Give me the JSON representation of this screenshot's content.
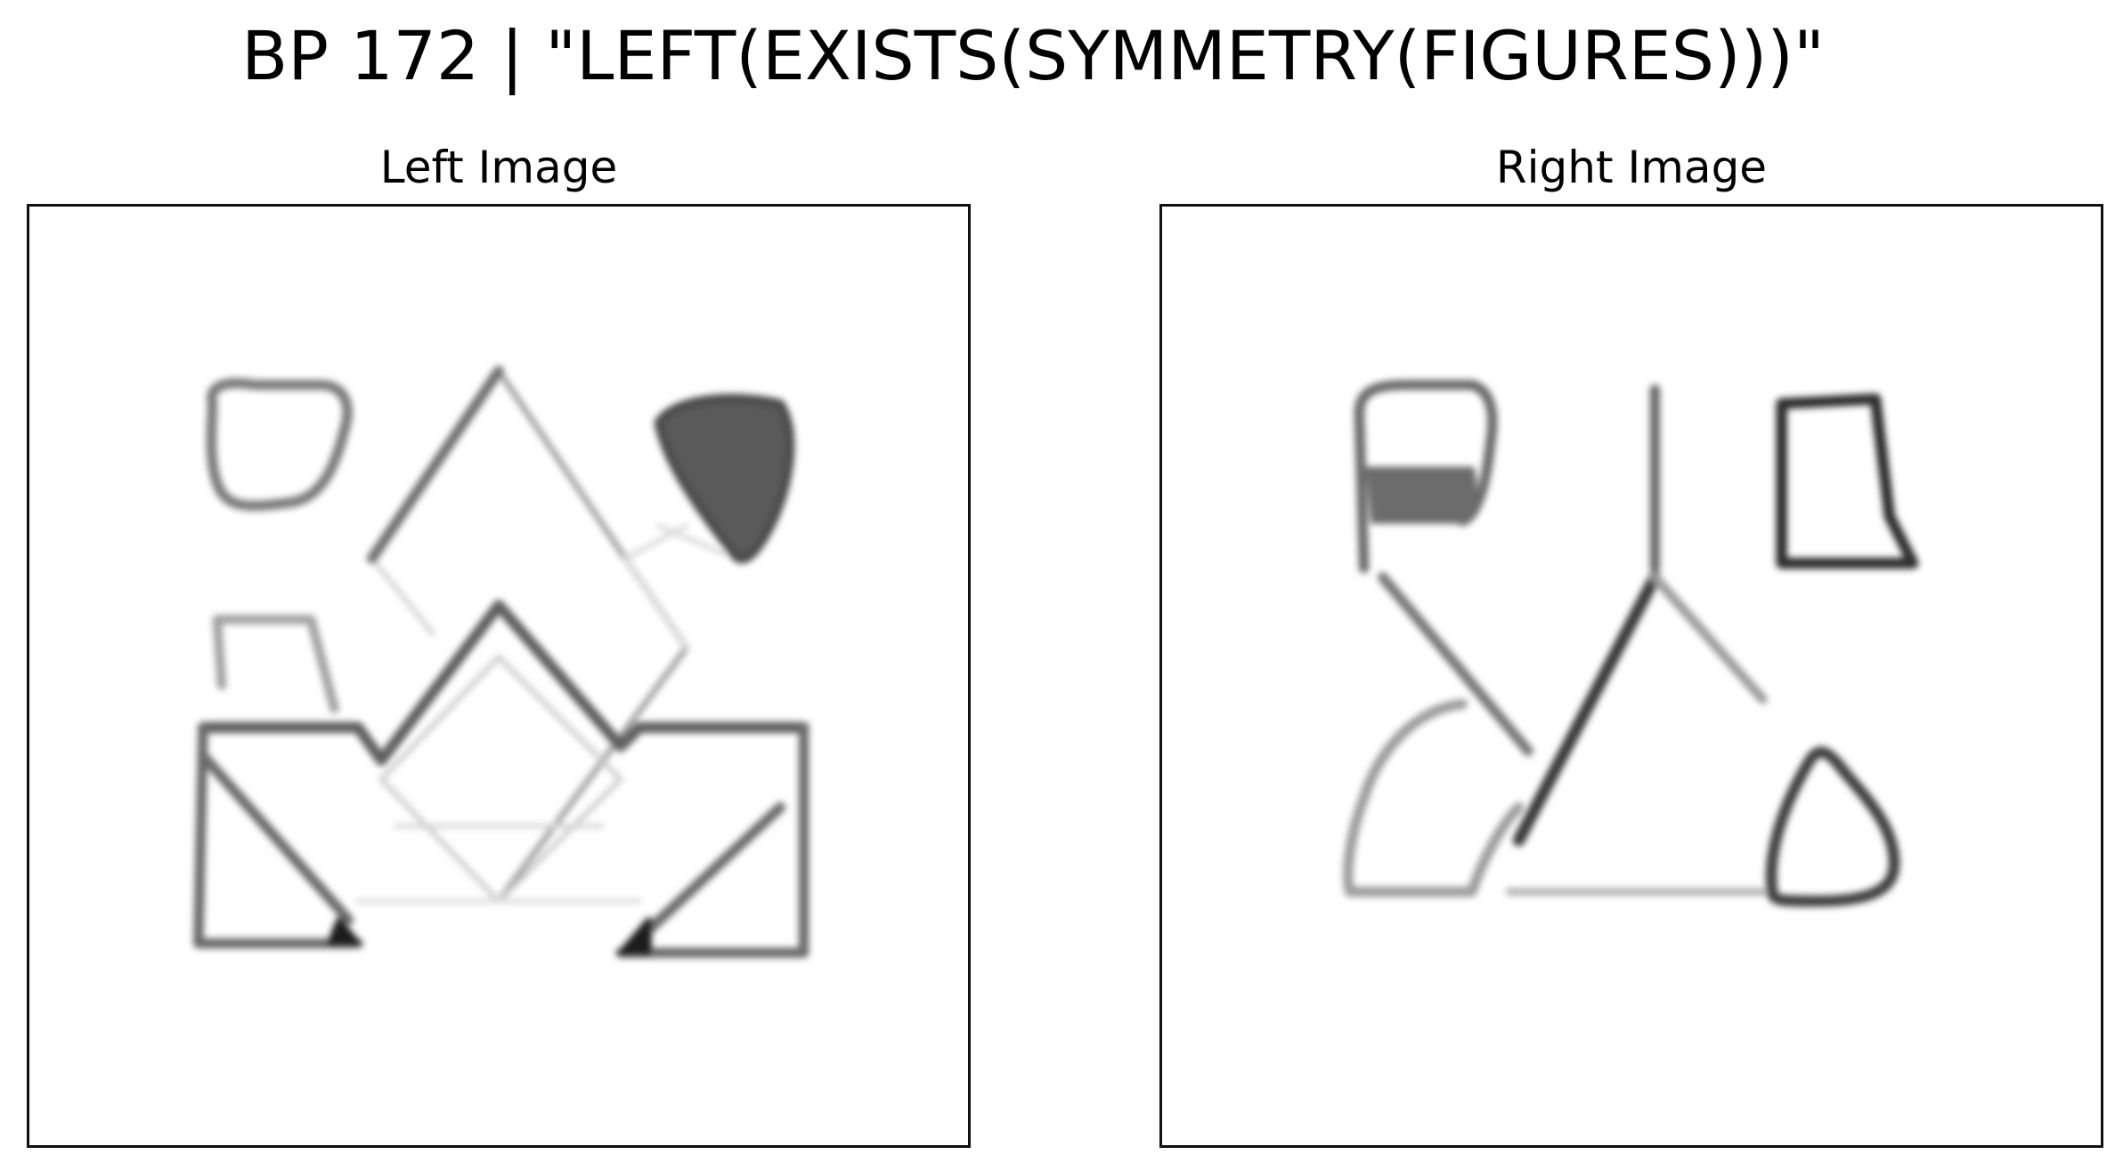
{
  "title": "BP 172 | \"LEFT(EXISTS(SYMMETRY(FIGURES)))\"",
  "panels": {
    "left": {
      "label": "Left Image",
      "description": "Mirror-symmetric line drawing: a large zig-zag house-like shape with an inner diamond, rounded blobs in the upper corners (one filled), and a small open rectangle on the left."
    },
    "right": {
      "label": "Right Image",
      "description": "Asymmetric line drawing: a branching stroke connecting a partially filled rounded square, an outlined rectangle, a teardrop loop and a rounded triangle."
    }
  },
  "colors": {
    "stroke_dark": "#2a2a2a",
    "stroke_mid": "#6a6a6a",
    "stroke_light": "#c8c8c8",
    "fill_dark": "#5a5a5a"
  }
}
